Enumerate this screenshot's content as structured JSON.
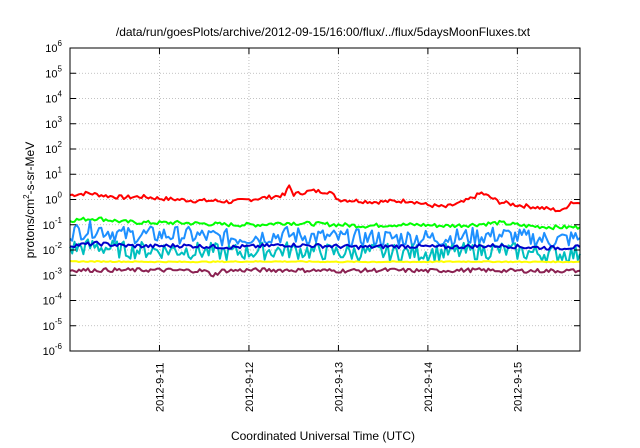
{
  "chart_data": {
    "type": "line",
    "title": "/data/run/goesPlots/archive/2012-09-15/16:00/flux/../flux/5daysMoonFluxes.txt",
    "xlabel": "Coordinated Universal Time (UTC)",
    "ylabel_parts": [
      "protons/cm",
      "2",
      "-s-sr-MeV"
    ],
    "y_scale": "log",
    "ylim_exponent": [
      -6,
      6
    ],
    "y_tick_exponents": [
      -6,
      -5,
      -4,
      -3,
      -2,
      -1,
      0,
      1,
      2,
      3,
      4,
      5,
      6
    ],
    "y_tick_base": "10",
    "xlim": [
      10.0,
      15.7
    ],
    "x_ticks": [
      {
        "x": 11,
        "label": "2012-9-11"
      },
      {
        "x": 12,
        "label": "2012-9-12"
      },
      {
        "x": 13,
        "label": "2012-9-13"
      },
      {
        "x": 14,
        "label": "2012-9-14"
      },
      {
        "x": 15,
        "label": "2012-9-15"
      }
    ],
    "grid": true,
    "series": [
      {
        "color": "#ff0000",
        "x": [
          10.0,
          10.2,
          10.4,
          10.6,
          10.8,
          11.0,
          11.2,
          11.4,
          11.6,
          11.8,
          12.0,
          12.2,
          12.4,
          12.45,
          12.5,
          12.7,
          12.9,
          13.0,
          13.2,
          13.4,
          13.6,
          13.8,
          14.0,
          14.2,
          14.4,
          14.6,
          14.8,
          15.0,
          15.2,
          15.4,
          15.5,
          15.6,
          15.7
        ],
        "values": [
          1.5,
          1.8,
          1.4,
          1.2,
          1.3,
          1.1,
          1.0,
          0.9,
          0.9,
          0.8,
          1.0,
          1.2,
          1.5,
          3.5,
          1.6,
          2.2,
          2.0,
          1.0,
          0.9,
          0.8,
          0.85,
          0.9,
          0.6,
          0.5,
          0.8,
          1.8,
          0.8,
          0.6,
          0.5,
          0.4,
          0.35,
          0.8,
          0.7
        ]
      },
      {
        "color": "#00ff00",
        "x": [
          10.0,
          10.3,
          10.6,
          10.9,
          11.2,
          11.5,
          11.8,
          12.1,
          12.4,
          12.7,
          13.0,
          13.3,
          13.6,
          13.9,
          14.2,
          14.5,
          14.8,
          15.1,
          15.4,
          15.7
        ],
        "values": [
          0.15,
          0.18,
          0.13,
          0.12,
          0.12,
          0.11,
          0.1,
          0.1,
          0.12,
          0.11,
          0.1,
          0.09,
          0.1,
          0.1,
          0.09,
          0.1,
          0.12,
          0.09,
          0.08,
          0.08
        ]
      },
      {
        "color": "#1e90ff",
        "x": [
          10.0,
          10.3,
          10.6,
          10.9,
          11.2,
          11.5,
          11.8,
          12.1,
          12.4,
          12.7,
          13.0,
          13.3,
          13.6,
          13.9,
          14.2,
          14.5,
          14.8,
          15.1,
          15.4,
          15.7
        ],
        "values": [
          0.05,
          0.07,
          0.04,
          0.04,
          0.04,
          0.035,
          0.03,
          0.035,
          0.04,
          0.035,
          0.03,
          0.03,
          0.03,
          0.03,
          0.03,
          0.035,
          0.04,
          0.03,
          0.025,
          0.03
        ]
      },
      {
        "color": "#00bfbf",
        "x": [
          10.0,
          10.3,
          10.6,
          10.9,
          11.2,
          11.5,
          11.8,
          12.1,
          12.4,
          12.7,
          13.0,
          13.3,
          13.6,
          13.9,
          14.2,
          14.5,
          14.8,
          15.1,
          15.4,
          15.7
        ],
        "values": [
          0.012,
          0.014,
          0.01,
          0.01,
          0.01,
          0.009,
          0.008,
          0.009,
          0.01,
          0.009,
          0.008,
          0.008,
          0.008,
          0.008,
          0.008,
          0.009,
          0.01,
          0.008,
          0.007,
          0.007
        ]
      },
      {
        "color": "#0000cc",
        "x": [
          10.0,
          10.3,
          10.6,
          10.9,
          11.2,
          11.5,
          11.8,
          12.1,
          12.4,
          12.7,
          13.0,
          13.3,
          13.6,
          13.9,
          14.2,
          14.5,
          14.8,
          15.1,
          15.4,
          15.7
        ],
        "values": [
          0.015,
          0.018,
          0.015,
          0.014,
          0.015,
          0.014,
          0.013,
          0.014,
          0.016,
          0.015,
          0.014,
          0.013,
          0.014,
          0.014,
          0.013,
          0.014,
          0.015,
          0.013,
          0.012,
          0.013
        ]
      },
      {
        "color": "#ffff00",
        "x": [
          10.0,
          10.5,
          11.0,
          11.5,
          12.0,
          12.5,
          13.0,
          13.5,
          14.0,
          14.5,
          15.0,
          15.7
        ],
        "values": [
          0.0035,
          0.0035,
          0.0034,
          0.0034,
          0.0035,
          0.0035,
          0.0034,
          0.0034,
          0.0034,
          0.0035,
          0.0034,
          0.0034
        ]
      },
      {
        "color": "#8b2252",
        "x": [
          10.0,
          10.5,
          11.0,
          11.5,
          11.6,
          11.7,
          12.0,
          12.5,
          13.0,
          13.5,
          14.0,
          14.5,
          15.0,
          15.7
        ],
        "values": [
          0.0016,
          0.0016,
          0.0016,
          0.0015,
          0.001,
          0.0015,
          0.0016,
          0.0016,
          0.0015,
          0.0016,
          0.0015,
          0.0016,
          0.0015,
          0.0015
        ]
      }
    ]
  }
}
